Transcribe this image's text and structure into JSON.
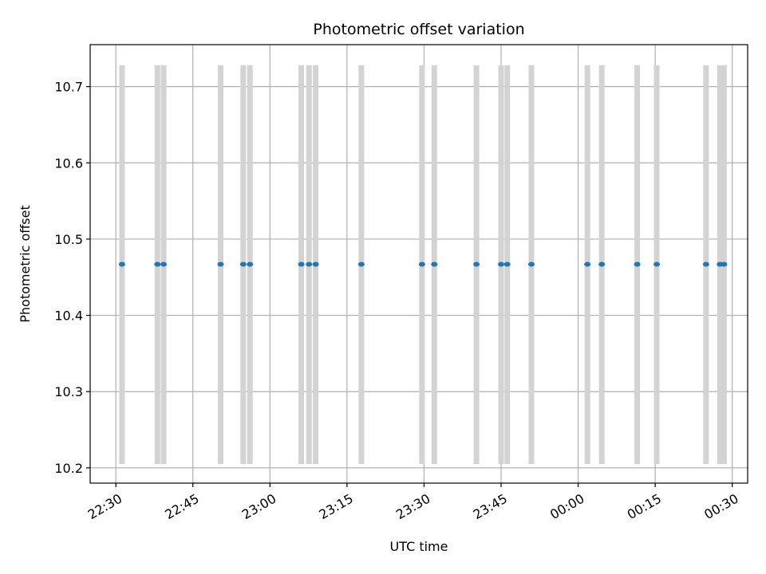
{
  "chart_data": {
    "type": "scatter",
    "title": "Photometric offset variation",
    "xlabel": "UTC time",
    "ylabel": "Photometric offset",
    "grid": true,
    "xlim": [
      "22:25",
      "00:33"
    ],
    "ylim": [
      10.18,
      10.755
    ],
    "x_tick_labels": [
      "22:30",
      "22:45",
      "23:00",
      "23:15",
      "23:30",
      "23:45",
      "00:00",
      "00:15",
      "00:30"
    ],
    "y_tick_labels": [
      "10.2",
      "10.3",
      "10.4",
      "10.5",
      "10.6",
      "10.7"
    ],
    "colors": {
      "points": "#1f77b4",
      "errorbars": "#d3d3d3",
      "grid": "#b0b0b0"
    },
    "points": {
      "x": [
        "22:31.2",
        "22:38.1",
        "22:39.3",
        "22:50.4",
        "22:54.8",
        "22:56.1",
        "23:06.1",
        "23:07.6",
        "23:08.9",
        "23:17.8",
        "23:29.6",
        "23:32.0",
        "23:40.2",
        "23:45.0",
        "23:46.2",
        "23:50.9",
        "00:01.8",
        "00:04.6",
        "00:11.5",
        "00:15.3",
        "00:24.9",
        "00:27.6",
        "00:28.4"
      ],
      "y": [
        10.467,
        10.467,
        10.467,
        10.467,
        10.467,
        10.467,
        10.467,
        10.467,
        10.467,
        10.467,
        10.467,
        10.467,
        10.467,
        10.467,
        10.467,
        10.467,
        10.467,
        10.467,
        10.467,
        10.467,
        10.467,
        10.467,
        10.467
      ],
      "y_error_range": [
        10.205,
        10.728
      ]
    }
  }
}
